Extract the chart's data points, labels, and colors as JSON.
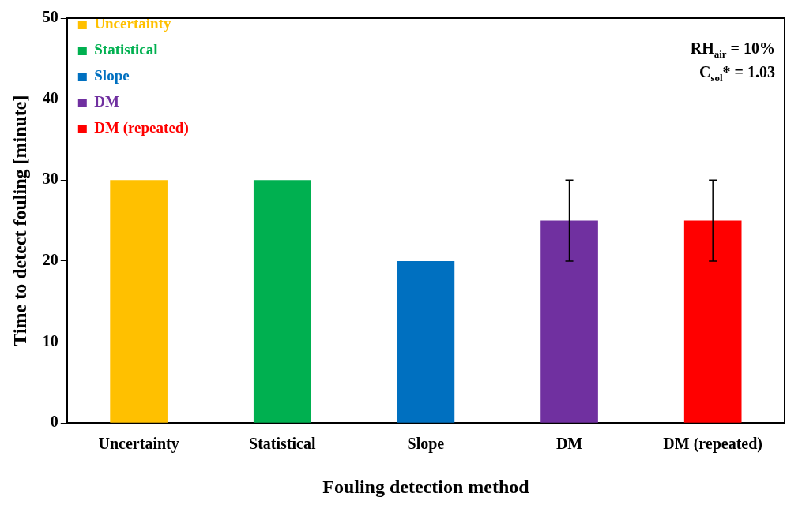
{
  "chart_data": {
    "type": "bar",
    "xlabel": "Fouling detection method",
    "ylabel": "Time to detect fouling [minute]",
    "categories": [
      "Uncertainty",
      "Statistical",
      "Slope",
      "DM",
      "DM (repeated)"
    ],
    "series": [
      {
        "name": "Uncertainty",
        "color": "#ffc000",
        "values": [
          30,
          null,
          null,
          null,
          null
        ]
      },
      {
        "name": "Statistical",
        "color": "#00b050",
        "values": [
          null,
          30,
          null,
          null,
          null
        ]
      },
      {
        "name": "Slope",
        "color": "#0070c0",
        "values": [
          null,
          null,
          20,
          null,
          null
        ]
      },
      {
        "name": "DM",
        "color": "#7030a0",
        "values": [
          null,
          null,
          null,
          25,
          null
        ],
        "errors": [
          null,
          null,
          null,
          5,
          null
        ]
      },
      {
        "name": "DM (repeated)",
        "color": "#ff0000",
        "values": [
          null,
          null,
          null,
          null,
          25
        ],
        "errors": [
          null,
          null,
          null,
          null,
          5
        ]
      }
    ],
    "ylim": [
      0,
      50
    ],
    "yticks": [
      0,
      10,
      20,
      30,
      40,
      50
    ],
    "grid": false,
    "legend": "top left",
    "annotations": [
      "RH$_{air}$ = 10%",
      "C$_{sol}$* = 1.03"
    ]
  }
}
